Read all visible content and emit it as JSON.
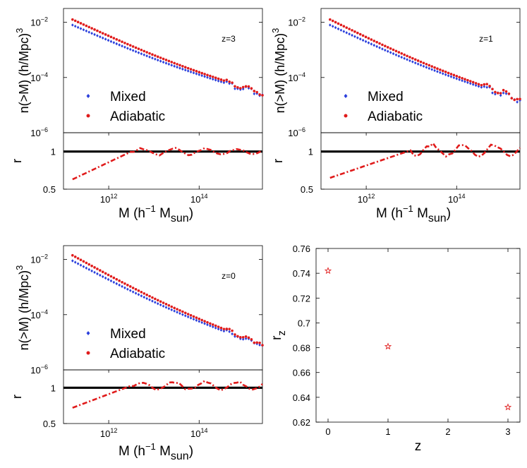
{
  "chart_data": [
    {
      "type": "scatter",
      "panel": "top-left",
      "annotation": "z=3",
      "xlabel": "M (h⁻¹ M_sun)",
      "xlabel_parts": [
        "M (h",
        "−1",
        " M",
        "sun",
        ")"
      ],
      "ylabel_top": "n(>M) (h/Mpc)",
      "ylabel_top_sup": "3",
      "ylabel_bottom": "r",
      "xscale": "log",
      "xlim_log10": [
        11.0,
        15.4
      ],
      "ylim_top_log10": [
        -6,
        -1.5
      ],
      "ylim_bottom": [
        0.5,
        1.25
      ],
      "x_ticks": [
        {
          "base": "10",
          "exp": "12",
          "log10": 12
        },
        {
          "base": "10",
          "exp": "14",
          "log10": 14
        }
      ],
      "y_ticks_top": [
        {
          "base": "10",
          "exp": "−2",
          "log10": -2
        },
        {
          "base": "10",
          "exp": "−4",
          "log10": -4
        },
        {
          "base": "10",
          "exp": "−6",
          "log10": -6
        }
      ],
      "y_ticks_bottom": [
        "0.5",
        "1"
      ],
      "legend": [
        {
          "name": "Mixed",
          "color": "#2a3fdc",
          "marker": "diamond"
        },
        {
          "name": "Adiabatic",
          "color": "#e01b1b",
          "marker": "dot"
        }
      ],
      "series": [
        {
          "name": "Mixed",
          "x_log10_range": [
            11.2,
            15.4
          ],
          "n_log10_range": [
            -2.1,
            -4.6
          ],
          "tail_step": 0.7,
          "tail_noise": 0.1
        },
        {
          "name": "Adiabatic",
          "x_log10_range": [
            11.2,
            15.4
          ],
          "n_log10_range": [
            -1.9,
            -4.55
          ],
          "tail_step": 0.7,
          "tail_noise": 0.1
        }
      ],
      "ratio": {
        "x_log10_range": [
          11.2,
          15.4
        ],
        "r_start": 0.63,
        "r_plateau": 1.0,
        "plateau_from_log10": 12.5,
        "scatter": 0.05
      }
    },
    {
      "type": "scatter",
      "panel": "top-right",
      "annotation": "z=1",
      "xlabel": "M (h⁻¹ M_sun)",
      "xlabel_parts": [
        "M (h",
        "−1",
        " M",
        "sun",
        ")"
      ],
      "ylabel_top": "n(>M) (h/Mpc)",
      "ylabel_top_sup": "3",
      "ylabel_bottom": "r",
      "xscale": "log",
      "xlim_log10": [
        11.0,
        15.4
      ],
      "ylim_top_log10": [
        -6,
        -1.5
      ],
      "ylim_bottom": [
        0.5,
        1.25
      ],
      "x_ticks": [
        {
          "base": "10",
          "exp": "12",
          "log10": 12
        },
        {
          "base": "10",
          "exp": "14",
          "log10": 14
        }
      ],
      "y_ticks_top": [
        {
          "base": "10",
          "exp": "−2",
          "log10": -2
        },
        {
          "base": "10",
          "exp": "−4",
          "log10": -4
        },
        {
          "base": "10",
          "exp": "−6",
          "log10": -6
        }
      ],
      "y_ticks_bottom": [
        "0.5",
        "1"
      ],
      "legend": [
        {
          "name": "Mixed",
          "color": "#2a3fdc",
          "marker": "diamond"
        },
        {
          "name": "Adiabatic",
          "color": "#e01b1b",
          "marker": "dot"
        }
      ],
      "series": [
        {
          "name": "Mixed",
          "x_log10_range": [
            11.2,
            15.4
          ],
          "n_log10_range": [
            -2.1,
            -4.8
          ],
          "tail_step": 0.6,
          "tail_noise": 0.12
        },
        {
          "name": "Adiabatic",
          "x_log10_range": [
            11.2,
            15.4
          ],
          "n_log10_range": [
            -1.9,
            -4.75
          ],
          "tail_step": 0.6,
          "tail_noise": 0.12
        }
      ],
      "ratio": {
        "x_log10_range": [
          11.2,
          15.4
        ],
        "r_start": 0.65,
        "r_plateau": 1.02,
        "plateau_from_log10": 13.0,
        "scatter": 0.09
      }
    },
    {
      "type": "scatter",
      "panel": "bottom-left",
      "annotation": "z=0",
      "xlabel": "M (h⁻¹ M_sun)",
      "xlabel_parts": [
        "M (h",
        "−1",
        " M",
        "sun",
        ")"
      ],
      "ylabel_top": "n(>M) (h/Mpc)",
      "ylabel_top_sup": "3",
      "ylabel_bottom": "r",
      "xscale": "log",
      "xlim_log10": [
        11.0,
        15.4
      ],
      "ylim_top_log10": [
        -6,
        -1.5
      ],
      "ylim_bottom": [
        0.5,
        1.25
      ],
      "x_ticks": [
        {
          "base": "10",
          "exp": "12",
          "log10": 12
        },
        {
          "base": "10",
          "exp": "14",
          "log10": 14
        }
      ],
      "y_ticks_top": [
        {
          "base": "10",
          "exp": "−2",
          "log10": -2
        },
        {
          "base": "10",
          "exp": "−4",
          "log10": -4
        },
        {
          "base": "10",
          "exp": "−6",
          "log10": -6
        }
      ],
      "y_ticks_bottom": [
        "0.5",
        "1"
      ],
      "legend": [
        {
          "name": "Mixed",
          "color": "#2a3fdc",
          "marker": "diamond"
        },
        {
          "name": "Adiabatic",
          "color": "#e01b1b",
          "marker": "dot"
        }
      ],
      "series": [
        {
          "name": "Mixed",
          "x_log10_range": [
            11.2,
            15.4
          ],
          "n_log10_range": [
            -2.05,
            -5.1
          ],
          "tail_step": 0.4,
          "tail_noise": 0.08
        },
        {
          "name": "Adiabatic",
          "x_log10_range": [
            11.2,
            15.4
          ],
          "n_log10_range": [
            -1.85,
            -5.05
          ],
          "tail_step": 0.4,
          "tail_noise": 0.08
        }
      ],
      "ratio": {
        "x_log10_range": [
          11.2,
          15.4
        ],
        "r_start": 0.72,
        "r_plateau": 1.03,
        "plateau_from_log10": 12.5,
        "scatter": 0.07
      }
    },
    {
      "type": "scatter",
      "panel": "bottom-right",
      "xlabel": "z",
      "ylabel": "r",
      "ylabel_sub": "z",
      "xlim": [
        -0.2,
        3.2
      ],
      "ylim": [
        0.62,
        0.76
      ],
      "x_ticks": [
        "0",
        "1",
        "2",
        "3"
      ],
      "y_ticks": [
        "0.62",
        "0.64",
        "0.66",
        "0.68",
        "0.7",
        "0.72",
        "0.74",
        "0.76"
      ],
      "marker": "star",
      "color": "#e01b1b",
      "points": [
        {
          "x": 0,
          "y": 0.742
        },
        {
          "x": 1,
          "y": 0.681
        },
        {
          "x": 3,
          "y": 0.632
        }
      ]
    }
  ]
}
